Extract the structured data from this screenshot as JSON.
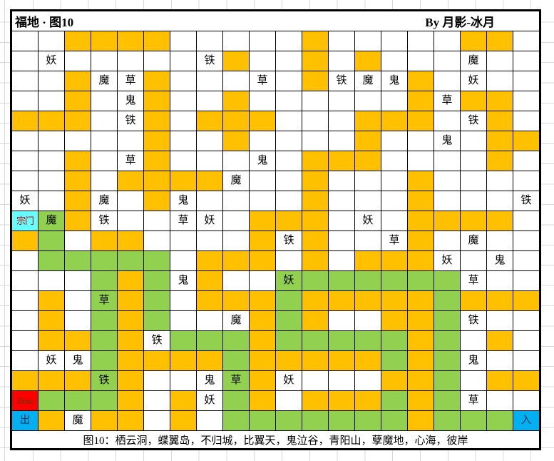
{
  "window": {
    "title": "福地 · 图10",
    "author": "By 月影-冰月",
    "note": "图10：栖云洞，蝶翼岛，不归城，比翼天，鬼泣谷，青阳山，孽魔地，心海，彼岸"
  },
  "palette": {
    "W": "#FFFFFF",
    "O": "#FFC000",
    "G": "#92D050",
    "C": "#66FFFF",
    "R": "#FF0000",
    "B": "#00B0F0"
  },
  "text_colors": {
    "default": "#000000",
    "C": "#C00000",
    "R": "#703000",
    "B": "#17375E"
  },
  "cell_labels_legend": [
    "妖",
    "魔",
    "鬼",
    "铁",
    "草",
    "宗门",
    "Boss",
    "出",
    "入"
  ],
  "grid": {
    "rows": 20,
    "cols": 20,
    "cells": [
      [
        "W",
        "W",
        "O",
        "O",
        "O",
        "O",
        "W",
        "W",
        "W",
        "W",
        "W",
        "O",
        "W",
        "W",
        "W",
        "W",
        "W",
        "O",
        "O",
        "W"
      ],
      [
        "W",
        "W:妖",
        "W",
        "W",
        "W",
        "W",
        "W",
        "W:铁",
        "O",
        "W",
        "W",
        "O",
        "W",
        "O",
        "W",
        "W",
        "W",
        "W:魔",
        "W",
        "W"
      ],
      [
        "W",
        "W",
        "O",
        "W:魔",
        "W:草",
        "O",
        "W",
        "W",
        "W",
        "W:草",
        "W",
        "O",
        "W:铁",
        "W:魔",
        "W:鬼",
        "O",
        "W",
        "W:妖",
        "W",
        "W"
      ],
      [
        "W",
        "W",
        "O",
        "W",
        "W:鬼",
        "O",
        "W",
        "W",
        "O",
        "W",
        "W",
        "W",
        "W",
        "W",
        "W",
        "O",
        "W:草",
        "O",
        "O",
        "W"
      ],
      [
        "O",
        "O",
        "O",
        "W",
        "W:铁",
        "O",
        "W",
        "O",
        "O",
        "O",
        "W",
        "W",
        "W",
        "O",
        "O",
        "O",
        "W",
        "W:铁",
        "O",
        "W"
      ],
      [
        "W",
        "W",
        "W",
        "W",
        "W",
        "O",
        "W",
        "W",
        "O",
        "W",
        "W",
        "W",
        "W",
        "O",
        "W",
        "W",
        "W:鬼",
        "W",
        "O",
        "O"
      ],
      [
        "W",
        "W",
        "O",
        "W",
        "W:草",
        "O",
        "W",
        "W",
        "W",
        "W:鬼",
        "W",
        "O",
        "O",
        "O",
        "W",
        "W",
        "W",
        "W",
        "O",
        "W"
      ],
      [
        "W",
        "W",
        "O",
        "W",
        "O",
        "O",
        "O",
        "O",
        "W:魔",
        "W",
        "W",
        "O",
        "W",
        "W",
        "W",
        "O",
        "W",
        "W",
        "W",
        "W"
      ],
      [
        "W:妖",
        "W",
        "O",
        "W:魔",
        "W",
        "O",
        "W:鬼",
        "W",
        "W",
        "W",
        "W",
        "O",
        "W",
        "W",
        "W",
        "O",
        "W",
        "W",
        "W",
        "W:铁"
      ],
      [
        "C:宗门",
        "G:魔",
        "O",
        "W:铁",
        "W",
        "W",
        "W:草",
        "W:妖",
        "W",
        "O",
        "O",
        "O",
        "W",
        "W:妖",
        "W",
        "O",
        "O",
        "O",
        "O",
        "W"
      ],
      [
        "O",
        "G",
        "W",
        "O",
        "O",
        "W",
        "W",
        "W",
        "W",
        "O",
        "W:铁",
        "O",
        "W",
        "W",
        "W:草",
        "O",
        "W",
        "W:魔",
        "W",
        "W"
      ],
      [
        "W",
        "G",
        "G",
        "G",
        "G",
        "G",
        "W",
        "O",
        "O",
        "O",
        "W",
        "O",
        "W",
        "O",
        "O",
        "O",
        "W:妖",
        "W",
        "W:鬼",
        "W"
      ],
      [
        "W",
        "W",
        "W",
        "G",
        "O",
        "G",
        "W:鬼",
        "O",
        "W",
        "W",
        "G:妖",
        "G",
        "G",
        "G",
        "G",
        "G",
        "G",
        "W:草",
        "W",
        "W"
      ],
      [
        "W",
        "O",
        "W",
        "G:草",
        "O",
        "G",
        "W",
        "O",
        "O",
        "O",
        "G",
        "O",
        "O",
        "O",
        "O",
        "O",
        "G",
        "O",
        "O",
        "O"
      ],
      [
        "W",
        "O",
        "W",
        "G",
        "O",
        "G",
        "W",
        "W",
        "W:魔",
        "O",
        "G",
        "O",
        "W",
        "W",
        "O",
        "O",
        "G",
        "W:铁",
        "W",
        "W"
      ],
      [
        "W",
        "O",
        "O",
        "G",
        "O",
        "W:铁",
        "G",
        "G",
        "G",
        "O",
        "G",
        "G",
        "G",
        "G",
        "G",
        "O",
        "G",
        "W",
        "O",
        "W"
      ],
      [
        "W",
        "W:妖",
        "W:鬼",
        "G",
        "O",
        "O",
        "O",
        "O",
        "G",
        "O",
        "O",
        "O",
        "O",
        "O",
        "G",
        "O",
        "G",
        "W:鬼",
        "W",
        "W"
      ],
      [
        "O",
        "O",
        "O",
        "G:铁",
        "O",
        "W",
        "W",
        "W:鬼",
        "G:草",
        "O",
        "W:妖",
        "W",
        "W",
        "W",
        "O",
        "O",
        "G",
        "W",
        "O",
        "O"
      ],
      [
        "R:Boss",
        "G",
        "G",
        "G",
        "O",
        "W",
        "O",
        "W:妖",
        "G",
        "O",
        "W",
        "O",
        "O",
        "O",
        "G",
        "O",
        "G",
        "W:草",
        "W",
        "W"
      ],
      [
        "B:出",
        "O",
        "W:魔",
        "O",
        "O",
        "W",
        "O",
        "W",
        "G",
        "G",
        "G",
        "G",
        "G",
        "G",
        "G",
        "O",
        "G",
        "G",
        "G",
        "B:入"
      ]
    ]
  }
}
